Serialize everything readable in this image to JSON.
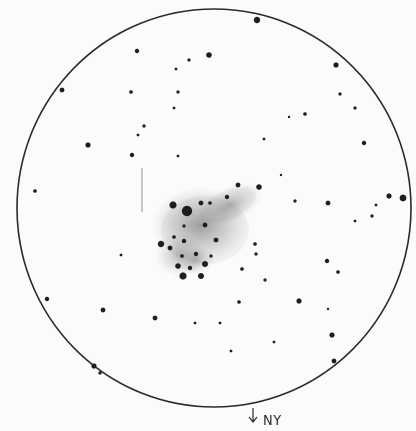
{
  "sketch": {
    "orientation_label": "NY",
    "ink_color": "#1e1e1e",
    "paper_color": "#fbfbfb"
  }
}
